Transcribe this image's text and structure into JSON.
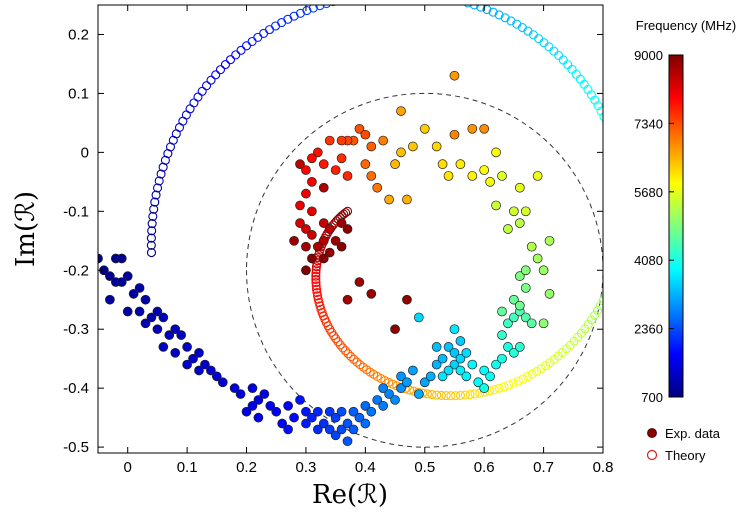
{
  "chart_data": {
    "type": "scatter",
    "xlabel": "Re(ℛ)",
    "ylabel": "Im(ℛ)",
    "xlim": [
      -0.05,
      0.8
    ],
    "ylim": [
      -0.51,
      0.25
    ],
    "x_ticks": [
      "0",
      "0.1",
      "0.2",
      "0.3",
      "0.4",
      "0.5",
      "0.6",
      "0.7",
      "0.8"
    ],
    "y_ticks": [
      "0.2",
      "0.1",
      "0",
      "-0.1",
      "-0.2",
      "-0.3",
      "-0.4",
      "-0.5"
    ],
    "colorbar": {
      "title": "Frequency (MHz)",
      "range": [
        700,
        9000
      ],
      "ticks": [
        "9000",
        "7340",
        "5680",
        "4080",
        "2360",
        "700"
      ],
      "colormap": "jet"
    },
    "legend": {
      "placement": "bottom-right",
      "entries": [
        "Exp. data",
        "Theory"
      ]
    },
    "reference_circle": {
      "center": [
        0.5,
        -0.2
      ],
      "radius": 0.3,
      "style": "dashed"
    },
    "theory_curve": {
      "style": "open-circles",
      "freq_range": [
        700,
        9000
      ],
      "spiral_center": [
        0.48,
        -0.14
      ],
      "start": [
        0.04,
        -0.17
      ],
      "end": [
        0.37,
        -0.1
      ]
    },
    "series": [
      {
        "name": "Exp. data",
        "style": "filled-circles",
        "points": [
          [
            -0.05,
            -0.18,
            800
          ],
          [
            -0.02,
            -0.18,
            820
          ],
          [
            -0.01,
            -0.18,
            840
          ],
          [
            -0.04,
            -0.2,
            860
          ],
          [
            -0.03,
            -0.21,
            880
          ],
          [
            -0.02,
            -0.22,
            900
          ],
          [
            -0.01,
            -0.22,
            920
          ],
          [
            0.0,
            -0.21,
            940
          ],
          [
            -0.03,
            -0.25,
            960
          ],
          [
            0.01,
            -0.24,
            980
          ],
          [
            0.0,
            -0.27,
            1000
          ],
          [
            0.02,
            -0.23,
            1020
          ],
          [
            0.03,
            -0.25,
            1040
          ],
          [
            0.02,
            -0.27,
            1060
          ],
          [
            0.03,
            -0.29,
            1080
          ],
          [
            0.04,
            -0.28,
            1100
          ],
          [
            0.05,
            -0.27,
            1120
          ],
          [
            0.06,
            -0.28,
            1140
          ],
          [
            0.05,
            -0.3,
            1160
          ],
          [
            0.07,
            -0.31,
            1180
          ],
          [
            0.08,
            -0.3,
            1200
          ],
          [
            0.09,
            -0.31,
            1220
          ],
          [
            0.06,
            -0.33,
            1240
          ],
          [
            0.08,
            -0.34,
            1260
          ],
          [
            0.1,
            -0.33,
            1280
          ],
          [
            0.11,
            -0.35,
            1300
          ],
          [
            0.12,
            -0.34,
            1320
          ],
          [
            0.13,
            -0.36,
            1340
          ],
          [
            0.1,
            -0.36,
            1360
          ],
          [
            0.12,
            -0.37,
            1380
          ],
          [
            0.14,
            -0.37,
            1400
          ],
          [
            0.15,
            -0.38,
            1420
          ],
          [
            0.16,
            -0.39,
            1440
          ],
          [
            0.18,
            -0.4,
            1460
          ],
          [
            0.19,
            -0.41,
            1480
          ],
          [
            0.21,
            -0.4,
            1500
          ],
          [
            0.22,
            -0.42,
            1520
          ],
          [
            0.23,
            -0.41,
            1540
          ],
          [
            0.2,
            -0.44,
            1560
          ],
          [
            0.22,
            -0.45,
            1580
          ],
          [
            0.21,
            -0.43,
            1600
          ],
          [
            0.24,
            -0.43,
            1640
          ],
          [
            0.25,
            -0.44,
            1680
          ],
          [
            0.27,
            -0.43,
            1720
          ],
          [
            0.26,
            -0.46,
            1760
          ],
          [
            0.28,
            -0.45,
            1800
          ],
          [
            0.27,
            -0.47,
            1840
          ],
          [
            0.29,
            -0.42,
            1880
          ],
          [
            0.3,
            -0.44,
            1920
          ],
          [
            0.3,
            -0.46,
            1960
          ],
          [
            0.31,
            -0.45,
            2000
          ],
          [
            0.32,
            -0.44,
            2040
          ],
          [
            0.32,
            -0.47,
            2080
          ],
          [
            0.33,
            -0.46,
            2120
          ],
          [
            0.34,
            -0.44,
            2160
          ],
          [
            0.34,
            -0.47,
            2200
          ],
          [
            0.35,
            -0.45,
            2240
          ],
          [
            0.35,
            -0.48,
            2280
          ],
          [
            0.36,
            -0.47,
            2320
          ],
          [
            0.36,
            -0.44,
            2360
          ],
          [
            0.37,
            -0.46,
            2400
          ],
          [
            0.37,
            -0.49,
            2440
          ],
          [
            0.38,
            -0.47,
            2480
          ],
          [
            0.38,
            -0.44,
            2520
          ],
          [
            0.39,
            -0.45,
            2560
          ],
          [
            0.4,
            -0.43,
            2600
          ],
          [
            0.4,
            -0.46,
            2640
          ],
          [
            0.41,
            -0.44,
            2680
          ],
          [
            0.42,
            -0.42,
            2720
          ],
          [
            0.43,
            -0.43,
            2760
          ],
          [
            0.43,
            -0.4,
            2800
          ],
          [
            0.44,
            -0.41,
            2840
          ],
          [
            0.45,
            -0.42,
            2880
          ],
          [
            0.46,
            -0.4,
            2920
          ],
          [
            0.46,
            -0.38,
            2960
          ],
          [
            0.47,
            -0.39,
            3000
          ],
          [
            0.48,
            -0.37,
            3040
          ],
          [
            0.5,
            -0.39,
            3080
          ],
          [
            0.49,
            -0.41,
            3120
          ],
          [
            0.51,
            -0.38,
            3160
          ],
          [
            0.52,
            -0.36,
            3200
          ],
          [
            0.53,
            -0.35,
            3240
          ],
          [
            0.52,
            -0.33,
            3280
          ],
          [
            0.54,
            -0.33,
            3320
          ],
          [
            0.55,
            -0.34,
            3360
          ],
          [
            0.56,
            -0.32,
            3400
          ],
          [
            0.55,
            -0.36,
            3440
          ],
          [
            0.56,
            -0.35,
            3480
          ],
          [
            0.57,
            -0.34,
            3520
          ],
          [
            0.54,
            -0.37,
            3560
          ],
          [
            0.53,
            -0.38,
            3600
          ],
          [
            0.55,
            -0.3,
            3640
          ],
          [
            0.56,
            -0.37,
            3680
          ],
          [
            0.57,
            -0.38,
            3720
          ],
          [
            0.58,
            -0.36,
            3760
          ],
          [
            0.59,
            -0.39,
            3800
          ],
          [
            0.6,
            -0.37,
            3840
          ],
          [
            0.61,
            -0.38,
            3880
          ],
          [
            0.62,
            -0.36,
            3920
          ],
          [
            0.6,
            -0.4,
            3960
          ],
          [
            0.63,
            -0.35,
            4000
          ],
          [
            0.64,
            -0.33,
            4060
          ],
          [
            0.65,
            -0.34,
            4120
          ],
          [
            0.66,
            -0.33,
            4180
          ],
          [
            0.63,
            -0.31,
            4240
          ],
          [
            0.64,
            -0.29,
            4300
          ],
          [
            0.65,
            -0.28,
            4360
          ],
          [
            0.66,
            -0.27,
            4420
          ],
          [
            0.67,
            -0.28,
            4480
          ],
          [
            0.68,
            -0.29,
            4540
          ],
          [
            0.63,
            -0.27,
            4600
          ],
          [
            0.65,
            -0.25,
            4660
          ],
          [
            0.66,
            -0.26,
            4720
          ],
          [
            0.67,
            -0.23,
            4780
          ],
          [
            0.66,
            -0.21,
            4840
          ],
          [
            0.67,
            -0.2,
            4900
          ],
          [
            0.7,
            -0.29,
            4960
          ],
          [
            0.71,
            -0.24,
            5020
          ],
          [
            0.7,
            -0.2,
            5080
          ],
          [
            0.69,
            -0.18,
            5140
          ],
          [
            0.71,
            -0.15,
            5200
          ],
          [
            0.68,
            -0.16,
            5260
          ],
          [
            0.66,
            -0.12,
            5320
          ],
          [
            0.64,
            -0.13,
            5380
          ],
          [
            0.62,
            -0.09,
            5440
          ],
          [
            0.65,
            -0.1,
            5500
          ],
          [
            0.67,
            -0.1,
            5560
          ],
          [
            0.63,
            -0.04,
            5620
          ],
          [
            0.66,
            -0.06,
            5680
          ],
          [
            0.69,
            -0.04,
            5740
          ],
          [
            0.61,
            -0.05,
            5800
          ],
          [
            0.6,
            -0.03,
            5860
          ],
          [
            0.62,
            -0.0,
            5920
          ],
          [
            0.58,
            -0.04,
            5980
          ],
          [
            0.56,
            -0.02,
            6040
          ],
          [
            0.54,
            -0.04,
            6100
          ],
          [
            0.53,
            -0.02,
            6160
          ],
          [
            0.52,
            0.01,
            6220
          ],
          [
            0.5,
            0.04,
            6280
          ],
          [
            0.48,
            0.01,
            6340
          ],
          [
            0.46,
            0.0,
            6400
          ],
          [
            0.45,
            -0.02,
            6460
          ],
          [
            0.47,
            -0.08,
            6520
          ],
          [
            0.44,
            -0.08,
            6580
          ],
          [
            0.46,
            0.07,
            6640
          ],
          [
            0.55,
            0.13,
            6700
          ],
          [
            0.58,
            0.04,
            6760
          ],
          [
            0.6,
            0.04,
            6820
          ],
          [
            0.55,
            0.03,
            6880
          ],
          [
            0.43,
            0.02,
            6940
          ],
          [
            0.42,
            -0.06,
            7000
          ],
          [
            0.41,
            -0.04,
            7060
          ],
          [
            0.4,
            -0.02,
            7120
          ],
          [
            0.41,
            0.01,
            7180
          ],
          [
            0.38,
            0.02,
            7240
          ],
          [
            0.39,
            0.04,
            7300
          ],
          [
            0.4,
            0.03,
            7360
          ],
          [
            0.37,
            0.02,
            7420
          ],
          [
            0.36,
            0.02,
            7480
          ],
          [
            0.34,
            0.02,
            7540
          ],
          [
            0.36,
            -0.01,
            7600
          ],
          [
            0.37,
            -0.04,
            7660
          ],
          [
            0.35,
            -0.03,
            7720
          ],
          [
            0.33,
            -0.02,
            7780
          ],
          [
            0.32,
            0.0,
            7840
          ],
          [
            0.31,
            -0.01,
            7900
          ],
          [
            0.3,
            -0.03,
            7960
          ],
          [
            0.31,
            -0.05,
            8020
          ],
          [
            0.3,
            -0.07,
            8080
          ],
          [
            0.29,
            -0.09,
            8140
          ],
          [
            0.31,
            -0.1,
            8200
          ],
          [
            0.29,
            -0.12,
            8260
          ],
          [
            0.3,
            -0.13,
            8320
          ],
          [
            0.31,
            -0.14,
            8380
          ],
          [
            0.33,
            -0.12,
            8440
          ],
          [
            0.34,
            -0.13,
            8500
          ],
          [
            0.33,
            -0.15,
            8560
          ],
          [
            0.32,
            -0.16,
            8620
          ],
          [
            0.3,
            -0.16,
            8680
          ],
          [
            0.28,
            -0.15,
            8720
          ],
          [
            0.36,
            -0.12,
            8760
          ],
          [
            0.35,
            -0.15,
            8800
          ],
          [
            0.34,
            -0.17,
            8840
          ],
          [
            0.37,
            -0.13,
            8880
          ],
          [
            0.36,
            -0.16,
            8920
          ],
          [
            0.31,
            -0.18,
            8950
          ],
          [
            0.33,
            -0.18,
            8970
          ],
          [
            0.3,
            -0.2,
            8990
          ],
          [
            0.29,
            -0.02,
            8500
          ],
          [
            0.33,
            -0.06,
            8600
          ],
          [
            0.37,
            -0.25,
            8700
          ],
          [
            0.39,
            -0.22,
            8750
          ],
          [
            0.41,
            -0.24,
            8800
          ],
          [
            0.47,
            -0.25,
            8850
          ],
          [
            0.45,
            -0.3,
            8900
          ],
          [
            0.49,
            -0.28,
            3500
          ]
        ]
      }
    ]
  }
}
